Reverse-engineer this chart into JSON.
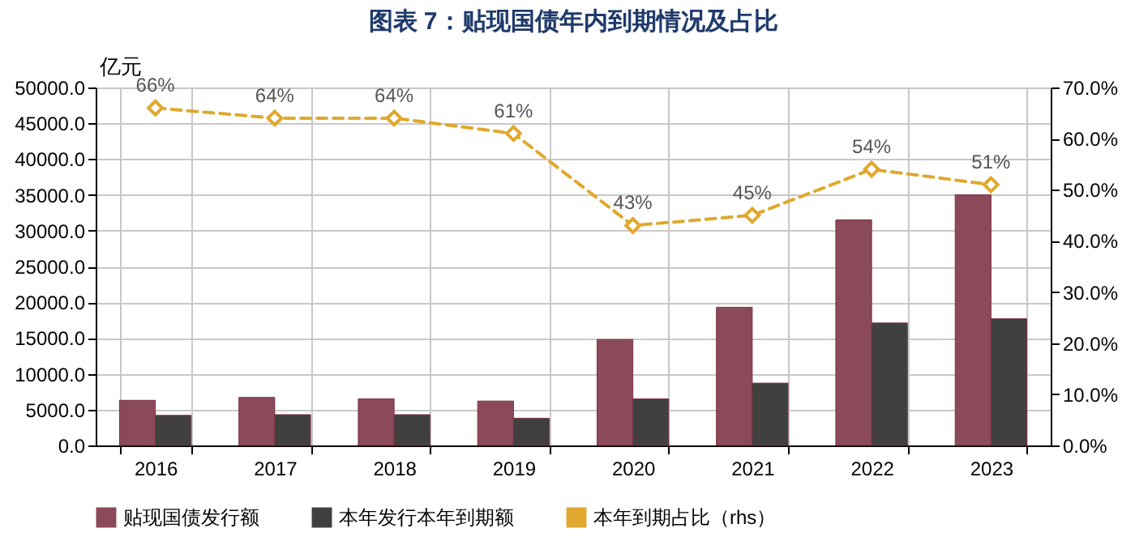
{
  "chart_data": {
    "type": "bar",
    "title": "图表 7：贴现国债年内到期情况及占比",
    "ylabel": "亿元",
    "categories": [
      "2016",
      "2017",
      "2018",
      "2019",
      "2020",
      "2021",
      "2022",
      "2023"
    ],
    "series": [
      {
        "name": "贴现国债发行额",
        "color": "#8b4a5a",
        "values": [
          6300,
          6700,
          6500,
          6200,
          14800,
          19300,
          31500,
          35000
        ]
      },
      {
        "name": "本年发行本年到期额",
        "color": "#404040",
        "values": [
          4200,
          4300,
          4300,
          3800,
          6500,
          8700,
          17100,
          17700
        ]
      },
      {
        "name": "本年到期占比（rhs）",
        "type": "line",
        "axis": "y2",
        "color": "#e0a82e",
        "marker": "diamond",
        "line_style": "dashed",
        "values": [
          66,
          64,
          64,
          61,
          43,
          45,
          54,
          51
        ],
        "value_labels": [
          "66%",
          "64%",
          "64%",
          "61%",
          "43%",
          "45%",
          "54%",
          "51%"
        ]
      }
    ],
    "ylim": [
      0,
      50000
    ],
    "yticks": [
      {
        "value": 0,
        "label": "0.0"
      },
      {
        "value": 5000,
        "label": "5000.0"
      },
      {
        "value": 10000,
        "label": "10000.0"
      },
      {
        "value": 15000,
        "label": "15000.0"
      },
      {
        "value": 20000,
        "label": "20000.0"
      },
      {
        "value": 25000,
        "label": "25000.0"
      },
      {
        "value": 30000,
        "label": "30000.0"
      },
      {
        "value": 35000,
        "label": "35000.0"
      },
      {
        "value": 40000,
        "label": "40000.0"
      },
      {
        "value": 45000,
        "label": "45000.0"
      },
      {
        "value": 50000,
        "label": "50000.0"
      }
    ],
    "y2lim": [
      0,
      70
    ],
    "y2ticks": [
      {
        "value": 0,
        "label": "0.0%"
      },
      {
        "value": 10,
        "label": "10.0%"
      },
      {
        "value": 20,
        "label": "20.0%"
      },
      {
        "value": 30,
        "label": "30.0%"
      },
      {
        "value": 40,
        "label": "40.0%"
      },
      {
        "value": 50,
        "label": "50.0%"
      },
      {
        "value": 60,
        "label": "60.0%"
      },
      {
        "value": 70,
        "label": "70.0%"
      }
    ],
    "grid": true,
    "legend": "bottom"
  }
}
